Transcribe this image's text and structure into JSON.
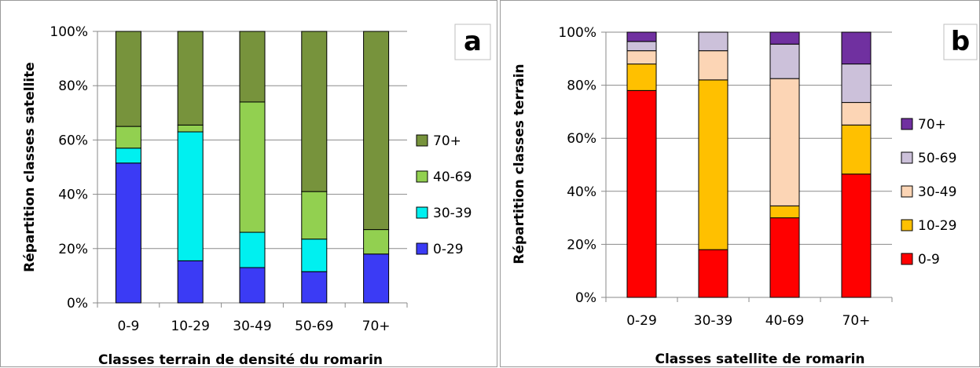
{
  "chart_data": [
    {
      "type": "bar",
      "stacked": true,
      "panel_label": "a",
      "xlabel": "Classes terrain de densité du romarin",
      "ylabel": "Répartition classes satellite",
      "ylim": [
        0,
        100
      ],
      "y_ticks": [
        "0%",
        "20%",
        "40%",
        "60%",
        "80%",
        "100%"
      ],
      "grid": true,
      "legend_position": "right",
      "categories": [
        "0-9",
        "10-29",
        "30-49",
        "50-69",
        "70+"
      ],
      "series": [
        {
          "name": "0-29",
          "color": "#3b3bf5",
          "values": [
            51.5,
            15.5,
            13,
            11.5,
            18
          ]
        },
        {
          "name": "30-39",
          "color": "#00f0f0",
          "values": [
            5.5,
            47.5,
            13,
            12,
            0
          ]
        },
        {
          "name": "40-69",
          "color": "#92d050",
          "values": [
            8,
            2.5,
            48,
            17.5,
            9
          ]
        },
        {
          "name": "70+",
          "color": "#77933c",
          "values": [
            35,
            34.5,
            26,
            59,
            73
          ]
        }
      ]
    },
    {
      "type": "bar",
      "stacked": true,
      "panel_label": "b",
      "xlabel": "Classes satellite de romarin",
      "ylabel": "Répartition classes terrain",
      "ylim": [
        0,
        100
      ],
      "y_ticks": [
        "0%",
        "20%",
        "40%",
        "60%",
        "80%",
        "100%"
      ],
      "grid": true,
      "legend_position": "right",
      "categories": [
        "0-29",
        "30-39",
        "40-69",
        "70+"
      ],
      "series": [
        {
          "name": "0-9",
          "color": "#ff0000",
          "values": [
            78,
            18,
            30,
            46.5
          ]
        },
        {
          "name": "10-29",
          "color": "#ffc000",
          "values": [
            10,
            64,
            4.5,
            18.5
          ]
        },
        {
          "name": "30-49",
          "color": "#fcd5b5",
          "values": [
            5,
            11,
            48,
            8.5
          ]
        },
        {
          "name": "50-69",
          "color": "#ccc1da",
          "values": [
            3.5,
            7,
            13,
            14.5
          ]
        },
        {
          "name": "70+",
          "color": "#7030a0",
          "values": [
            3.5,
            0,
            4.5,
            12
          ]
        }
      ]
    }
  ]
}
